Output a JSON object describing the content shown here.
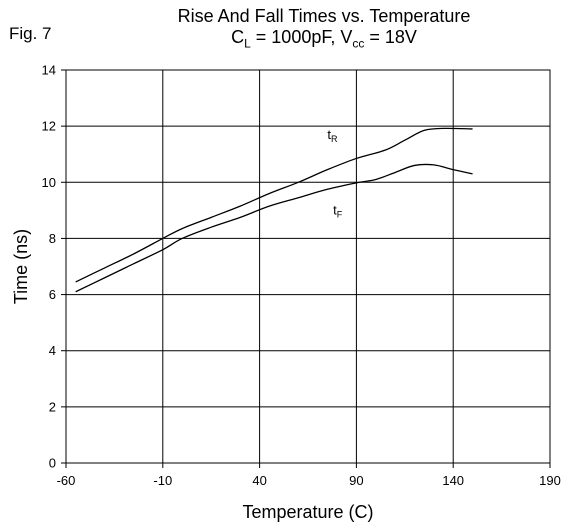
{
  "figure": {
    "label": "Fig. 7",
    "title_line1": "Rise And Fall Times vs. Temperature",
    "title_line2": {
      "cl_main": "C",
      "cl_sub": "L",
      "cl_rest": " = 1000pF, V",
      "vcc_sub": "cc",
      "vcc_rest": " = 18V"
    }
  },
  "chart_data": {
    "type": "line",
    "xlabel": "Temperature (C)",
    "ylabel": "Time (ns)",
    "xlim": [
      -60,
      190
    ],
    "ylim": [
      0,
      14
    ],
    "xticks": [
      -60,
      -10,
      40,
      90,
      140,
      190
    ],
    "yticks": [
      0,
      2,
      4,
      6,
      8,
      10,
      12,
      14
    ],
    "grid": true,
    "series": [
      {
        "name": "tR",
        "label_main": "t",
        "label_sub": "R",
        "color": "#000000",
        "x": [
          -55,
          -40,
          -25,
          -10,
          0,
          15,
          30,
          45,
          60,
          75,
          90,
          105,
          115,
          125,
          135,
          150
        ],
        "y": [
          6.45,
          6.95,
          7.45,
          8.0,
          8.35,
          8.75,
          9.15,
          9.6,
          10.0,
          10.45,
          10.85,
          11.15,
          11.5,
          11.85,
          11.92,
          11.9
        ]
      },
      {
        "name": "tF",
        "label_main": "t",
        "label_sub": "F",
        "color": "#000000",
        "x": [
          -55,
          -40,
          -25,
          -10,
          0,
          15,
          30,
          45,
          60,
          75,
          90,
          100,
          110,
          120,
          130,
          140,
          150
        ],
        "y": [
          6.1,
          6.6,
          7.1,
          7.6,
          8.0,
          8.4,
          8.75,
          9.15,
          9.45,
          9.75,
          9.98,
          10.1,
          10.35,
          10.6,
          10.62,
          10.45,
          10.3
        ]
      }
    ]
  }
}
